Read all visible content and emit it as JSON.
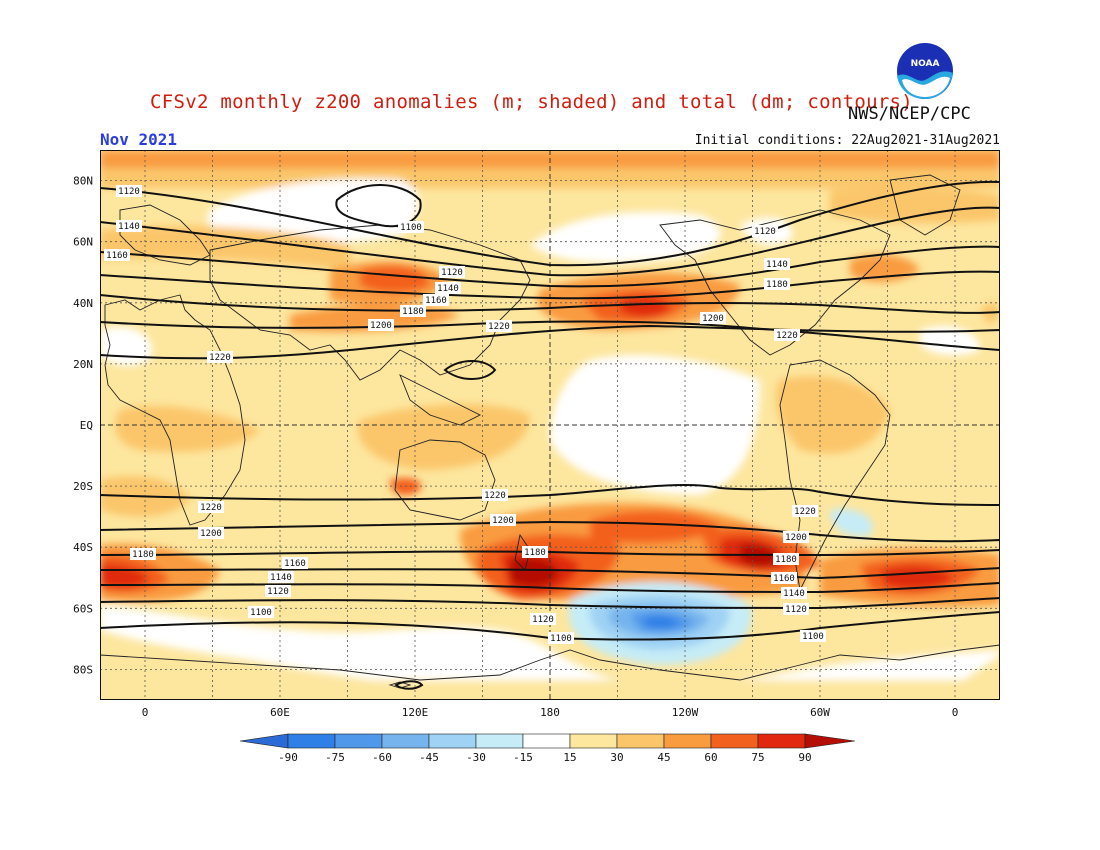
{
  "header": {
    "title": "CFSv2 monthly z200 anomalies (m; shaded) and total (dm; contours)",
    "agency": "NWS/NCEP/CPC",
    "valid_month": "Nov 2021",
    "initial_conditions": "Initial conditions: 22Aug2021-31Aug2021",
    "logo_text": "NOAA"
  },
  "axes": {
    "lat_labels": [
      "80N",
      "60N",
      "40N",
      "20N",
      "EQ",
      "20S",
      "40S",
      "60S",
      "80S"
    ],
    "lat_values": [
      80,
      60,
      40,
      20,
      0,
      -20,
      -40,
      -60,
      -80
    ],
    "lon_labels": [
      "0",
      "60E",
      "120E",
      "180",
      "120W",
      "60W",
      "0"
    ],
    "lon_values": [
      0,
      60,
      120,
      180,
      240,
      300,
      360
    ],
    "lon_range": [
      -20,
      380
    ],
    "lat_range": [
      -90,
      90
    ]
  },
  "colorbar": {
    "labels": [
      "-90",
      "-75",
      "-60",
      "-45",
      "-30",
      "-15",
      "15",
      "30",
      "45",
      "60",
      "75",
      "90"
    ],
    "colors": [
      "#2c6ad6",
      "#2e7fe6",
      "#4f98ea",
      "#76b4ee",
      "#9fd2f4",
      "#c6ecf7",
      "#ffffff",
      "#fde69e",
      "#fbc66a",
      "#f99b3f",
      "#f3611e",
      "#e0290e",
      "#b40e06"
    ]
  },
  "contours": [
    {
      "value": 1120,
      "label": "1120"
    },
    {
      "value": 1140,
      "label": "1140"
    },
    {
      "value": 1160,
      "label": "1160"
    },
    {
      "value": 1180,
      "label": "1180"
    },
    {
      "value": 1200,
      "label": "1200"
    },
    {
      "value": 1220,
      "label": "1220"
    },
    {
      "value": 1100,
      "label": "1100"
    }
  ],
  "contour_labels": {
    "nh_1120_a": "1120",
    "nh_1140_a": "1140",
    "nh_1160_a": "1160",
    "nh_1100_a": "1100",
    "nh_1120_b": "1120",
    "nh_1140_b": "1140",
    "nh_1160_b": "1160",
    "nh_1180_b": "1180",
    "nh_1200_b": "1200",
    "nh_1220_b": "1220",
    "nh_1220_c": "1220",
    "nh_1120_c": "1120",
    "nh_1140_c": "1140",
    "nh_1180_c": "1180",
    "nh_1200_c": "1200",
    "nh_1220_d": "1220",
    "sh_1220_a": "1220",
    "sh_1200_a": "1200",
    "sh_1180_a": "1180",
    "sh_1160_a": "1160",
    "sh_1140_a": "1140",
    "sh_1120_a": "1120",
    "sh_1100_a": "1100",
    "sh_1220_b": "1220",
    "sh_1200_b": "1200",
    "sh_1180_b": "1180",
    "sh_1120_b": "1120",
    "sh_1100_b": "1100",
    "sh_1220_c": "1220",
    "sh_1200_c": "1200",
    "sh_1180_c": "1180",
    "sh_1160_c": "1160",
    "sh_1140_c": "1140",
    "sh_1120_c": "1120",
    "sh_1100_c": "1100"
  }
}
